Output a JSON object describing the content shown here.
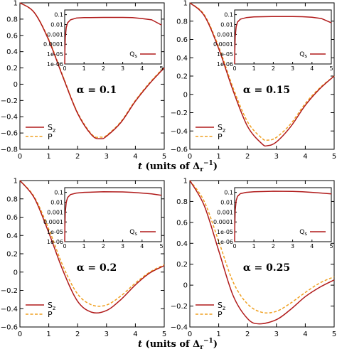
{
  "chart_data": [
    {
      "type": "line",
      "annotation": "α = 0.1",
      "xlim": [
        0,
        5
      ],
      "ylim": [
        -0.8,
        1
      ],
      "x_ticks": [
        0,
        1,
        2,
        3,
        4,
        5
      ],
      "y_ticks": [
        1,
        0.8,
        0.6,
        0.4,
        0.2,
        0,
        -0.2,
        -0.4,
        -0.6,
        -0.8
      ],
      "series": [
        {
          "name": "S_z",
          "color": "#b01a1a",
          "style": "solid",
          "x": [
            0,
            0.5,
            1,
            1.5,
            2,
            2.5,
            2.8,
            3,
            3.5,
            4,
            4.5,
            5
          ],
          "y": [
            1,
            0.88,
            0.54,
            0.08,
            -0.36,
            -0.63,
            -0.67,
            -0.64,
            -0.47,
            -0.21,
            0.01,
            0.2
          ]
        },
        {
          "name": "P",
          "color": "#f0a020",
          "style": "dashed",
          "x": [
            0,
            0.5,
            1,
            1.5,
            2,
            2.5,
            2.8,
            3,
            3.5,
            4,
            4.5,
            5
          ],
          "y": [
            1,
            0.88,
            0.55,
            0.09,
            -0.35,
            -0.62,
            -0.65,
            -0.63,
            -0.46,
            -0.2,
            0.02,
            0.21
          ]
        }
      ],
      "inset": {
        "scale": "log",
        "xlim": [
          0,
          5
        ],
        "ylim": [
          1e-06,
          0.3
        ],
        "x_ticks": [
          0,
          1,
          2,
          3,
          4,
          5
        ],
        "y_ticks": [
          "0.1",
          "0.01",
          "0.001",
          "0.0001",
          "1e-05",
          "1e-06"
        ],
        "y_tick_values": [
          0.1,
          0.01,
          0.001,
          0.0001,
          1e-05,
          1e-06
        ],
        "series": [
          {
            "name": "Q_s",
            "color": "#b01a1a",
            "x": [
              0.002,
              0.01,
              0.03,
              0.08,
              0.15,
              0.3,
              0.6,
              1,
              2,
              3,
              3.5,
              4,
              4.5,
              5
            ],
            "y": [
              1e-06,
              2e-05,
              0.0005,
              0.005,
              0.015,
              0.03,
              0.045,
              0.05,
              0.052,
              0.052,
              0.05,
              0.04,
              0.03,
              0.009
            ]
          }
        ]
      }
    },
    {
      "type": "line",
      "annotation": "α = 0.15",
      "xlim": [
        0,
        5
      ],
      "ylim": [
        -0.6,
        1
      ],
      "x_ticks": [
        0,
        1,
        2,
        3,
        4,
        5
      ],
      "y_ticks": [
        1,
        0.8,
        0.6,
        0.4,
        0.2,
        0,
        -0.2,
        -0.4,
        -0.6
      ],
      "series": [
        {
          "name": "S_z",
          "color": "#b01a1a",
          "style": "solid",
          "x": [
            0,
            0.5,
            1,
            1.5,
            2,
            2.5,
            2.7,
            3,
            3.5,
            4,
            4.5,
            5
          ],
          "y": [
            1,
            0.86,
            0.5,
            0.04,
            -0.35,
            -0.54,
            -0.56,
            -0.52,
            -0.35,
            -0.12,
            0.06,
            0.2
          ]
        },
        {
          "name": "P",
          "color": "#f0a020",
          "style": "dashed",
          "x": [
            0,
            0.5,
            1,
            1.5,
            2,
            2.5,
            2.7,
            3,
            3.5,
            4,
            4.5,
            5
          ],
          "y": [
            1,
            0.87,
            0.52,
            0.07,
            -0.3,
            -0.48,
            -0.5,
            -0.47,
            -0.32,
            -0.1,
            0.07,
            0.2
          ]
        }
      ],
      "inset": {
        "scale": "log",
        "xlim": [
          0,
          5
        ],
        "ylim": [
          1e-06,
          0.3
        ],
        "x_ticks": [
          0,
          1,
          2,
          3,
          4,
          5
        ],
        "y_ticks": [
          "0.1",
          "0.01",
          "0.001",
          "0.0001",
          "1e-05",
          "1e-06"
        ],
        "y_tick_values": [
          0.1,
          0.01,
          0.001,
          0.0001,
          1e-05,
          1e-06
        ],
        "series": [
          {
            "name": "Q_s",
            "color": "#b01a1a",
            "x": [
              0.002,
              0.01,
              0.03,
              0.08,
              0.15,
              0.3,
              0.6,
              1,
              2,
              3,
              3.5,
              4,
              4.5,
              5
            ],
            "y": [
              1e-06,
              2e-05,
              0.0006,
              0.006,
              0.018,
              0.035,
              0.05,
              0.06,
              0.065,
              0.065,
              0.062,
              0.055,
              0.04,
              0.015
            ]
          }
        ]
      }
    },
    {
      "type": "line",
      "annotation": "α = 0.2",
      "xlim": [
        0,
        5
      ],
      "ylim": [
        -0.6,
        1
      ],
      "x_ticks": [
        0,
        1,
        2,
        3,
        4,
        5
      ],
      "y_ticks": [
        1,
        0.8,
        0.6,
        0.4,
        0.2,
        0,
        -0.2,
        -0.4,
        -0.6
      ],
      "series": [
        {
          "name": "S_z",
          "color": "#b01a1a",
          "style": "solid",
          "x": [
            0,
            0.5,
            1,
            1.5,
            2,
            2.5,
            3,
            3.5,
            4,
            4.5,
            5
          ],
          "y": [
            1,
            0.81,
            0.43,
            0.01,
            -0.32,
            -0.44,
            -0.42,
            -0.3,
            -0.14,
            -0.01,
            0.07
          ]
        },
        {
          "name": "P",
          "color": "#f0a020",
          "style": "dashed",
          "x": [
            0,
            0.5,
            1,
            1.5,
            2,
            2.5,
            3,
            3.5,
            4,
            4.5,
            5
          ],
          "y": [
            1,
            0.82,
            0.47,
            0.06,
            -0.24,
            -0.36,
            -0.36,
            -0.26,
            -0.12,
            0.0,
            0.08
          ]
        }
      ],
      "inset": {
        "scale": "log",
        "xlim": [
          0,
          5
        ],
        "ylim": [
          1e-06,
          0.3
        ],
        "x_ticks": [
          0,
          1,
          2,
          3,
          4,
          5
        ],
        "y_ticks": [
          "0.1",
          "0.01",
          "0.001",
          "0.0001",
          "1e-05",
          "1e-06"
        ],
        "y_tick_values": [
          0.1,
          0.01,
          0.001,
          0.0001,
          1e-05,
          1e-06
        ],
        "series": [
          {
            "name": "Q_s",
            "color": "#b01a1a",
            "x": [
              0.002,
              0.01,
              0.03,
              0.08,
              0.15,
              0.3,
              0.6,
              1,
              2,
              3,
              3.5,
              4,
              4.5,
              5
            ],
            "y": [
              1e-06,
              3e-05,
              0.001,
              0.01,
              0.03,
              0.06,
              0.085,
              0.1,
              0.115,
              0.11,
              0.1,
              0.085,
              0.07,
              0.05
            ]
          }
        ]
      }
    },
    {
      "type": "line",
      "annotation": "α = 0.25",
      "xlim": [
        0,
        5
      ],
      "ylim": [
        -0.4,
        1
      ],
      "x_ticks": [
        0,
        1,
        2,
        3,
        4,
        5
      ],
      "y_ticks": [
        1,
        0.8,
        0.6,
        0.4,
        0.2,
        0,
        -0.2,
        -0.4
      ],
      "series": [
        {
          "name": "S_z",
          "color": "#b01a1a",
          "style": "solid",
          "x": [
            0,
            0.5,
            1,
            1.5,
            2,
            2.4,
            3,
            3.5,
            4,
            4.5,
            5
          ],
          "y": [
            1,
            0.76,
            0.33,
            -0.1,
            -0.32,
            -0.37,
            -0.33,
            -0.23,
            -0.11,
            -0.02,
            0.05
          ]
        },
        {
          "name": "P",
          "color": "#f0a020",
          "style": "dashed",
          "x": [
            0,
            0.5,
            1,
            1.5,
            2,
            2.5,
            3,
            3.5,
            4,
            4.5,
            5
          ],
          "y": [
            1,
            0.8,
            0.42,
            0.03,
            -0.18,
            -0.26,
            -0.25,
            -0.17,
            -0.07,
            0.02,
            0.08
          ]
        }
      ],
      "inset": {
        "scale": "log",
        "xlim": [
          0,
          5
        ],
        "ylim": [
          1e-06,
          0.3
        ],
        "x_ticks": [
          0,
          1,
          2,
          3,
          4,
          5
        ],
        "y_ticks": [
          "0.1",
          "0.01",
          "0.001",
          "0.0001",
          "1e-05",
          "1e-06"
        ],
        "y_tick_values": [
          0.1,
          0.01,
          0.001,
          0.0001,
          1e-05,
          1e-06
        ],
        "series": [
          {
            "name": "Q_s",
            "color": "#b01a1a",
            "x": [
              0.002,
              0.01,
              0.03,
              0.08,
              0.15,
              0.3,
              0.6,
              1,
              2,
              3,
              3.5,
              4,
              4.5,
              5
            ],
            "y": [
              1e-06,
              4e-05,
              0.0015,
              0.015,
              0.04,
              0.075,
              0.1,
              0.115,
              0.13,
              0.125,
              0.115,
              0.1,
              0.085,
              0.07
            ]
          }
        ]
      }
    }
  ],
  "xlabel_text": "t",
  "xlabel_units": "(units of Δ",
  "xlabel_sub": "r",
  "xlabel_sup": "−1",
  "xlabel_close": ")",
  "legend_labels": {
    "sz_main": "S",
    "sz_sub": "z",
    "p": "P",
    "qs_main": "Q",
    "qs_sub": "s"
  }
}
